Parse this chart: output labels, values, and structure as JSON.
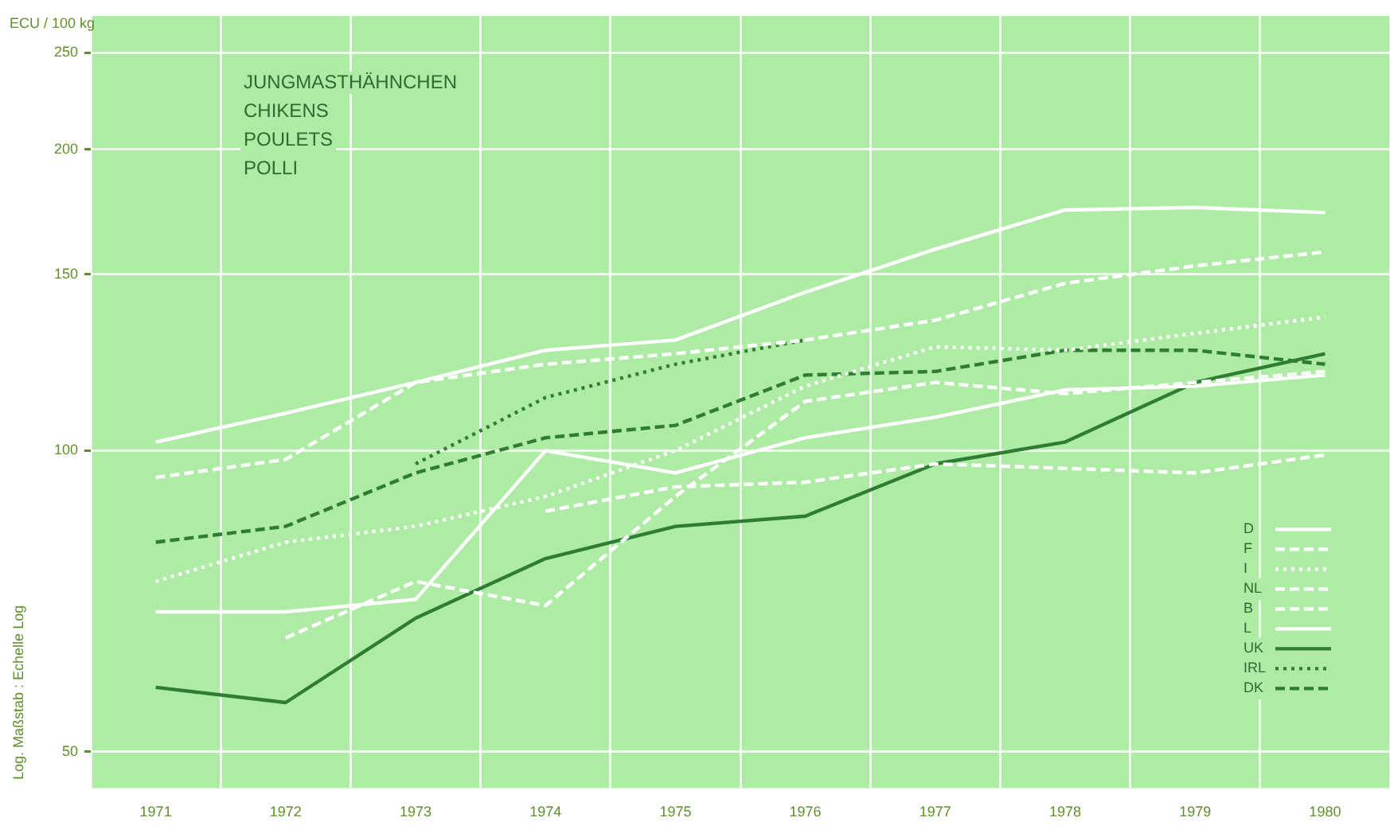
{
  "chart_data": {
    "type": "line",
    "title": "JUNGMASTHÄHNCHEN\nCHIKENS\nPOULETS\nPOLLI",
    "ylabel": "ECU / 100 kg",
    "annotations": [
      "Log. Maßstab : Echelle Log"
    ],
    "categories": [
      "1971",
      "1972",
      "1973",
      "1974",
      "1975",
      "1976",
      "1977",
      "1978",
      "1979",
      "1980"
    ],
    "ylim": [
      46,
      272
    ],
    "yticks": [
      50,
      100,
      150,
      200,
      250
    ],
    "log": true,
    "grid": true,
    "legend": "bottom right",
    "series": [
      {
        "name": "D",
        "color": "#ffffff",
        "line_style": "solid",
        "values": [
          102,
          109,
          117,
          126,
          129,
          144,
          159,
          174,
          175,
          173
        ]
      },
      {
        "name": "F",
        "color": "#ffffff",
        "line_style": "dashed",
        "values": [
          94,
          98,
          117,
          122,
          125,
          129,
          135,
          147,
          153,
          158
        ]
      },
      {
        "name": "I",
        "color": "#ffffff",
        "line_style": "dotted",
        "values": [
          74,
          81,
          84,
          90,
          100,
          116,
          127,
          126,
          131,
          136
        ]
      },
      {
        "name": "NL",
        "color": "#ffffff",
        "line_style": "dashed",
        "values": [
          null,
          65,
          74,
          70,
          90,
          112,
          117,
          114,
          117,
          120
        ]
      },
      {
        "name": "B",
        "color": "#ffffff",
        "line_style": "dashed",
        "values": [
          null,
          null,
          null,
          87,
          92,
          93,
          97,
          96,
          95,
          99
        ]
      },
      {
        "name": "L",
        "color": "#ffffff",
        "line_style": "solid",
        "values": [
          69,
          69,
          71,
          100,
          95,
          103,
          108,
          115,
          116,
          119
        ]
      },
      {
        "name": "UK",
        "color": "#2e7d32",
        "line_style": "solid",
        "values": [
          58,
          56,
          68,
          78,
          84,
          86,
          97,
          102,
          117,
          125
        ]
      },
      {
        "name": "IRL",
        "color": "#2e7d32",
        "line_style": "dotted",
        "values": [
          null,
          null,
          97,
          113,
          122,
          129,
          null,
          null,
          null,
          null
        ]
      },
      {
        "name": "DK",
        "color": "#2e7d32",
        "line_style": "dashed",
        "values": [
          81,
          84,
          95,
          103,
          106,
          119,
          120,
          126,
          126,
          122
        ]
      }
    ]
  }
}
